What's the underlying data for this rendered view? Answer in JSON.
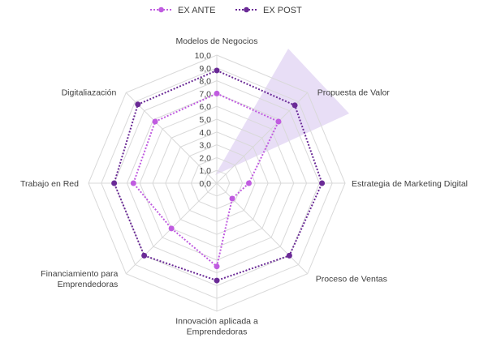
{
  "chart_data": {
    "type": "radar",
    "categories": [
      "Modelos de Negocios",
      "Propuesta de Valor",
      "Estrategia de Marketing Digital",
      "Proceso de Ventas",
      "Innovación aplicada a Emprendedoras",
      "Financiamiento para Emprendedoras",
      "Trabajo en Red",
      "Digitaliazación"
    ],
    "category_lines": [
      [
        "Modelos de Negocios"
      ],
      [
        "Propuesta de Valor"
      ],
      [
        "Estrategia de Marketing Digital"
      ],
      [
        "Proceso de Ventas"
      ],
      [
        "Innovación aplicada a",
        "Emprendedoras"
      ],
      [
        "Financiamiento para",
        "Emprendedoras"
      ],
      [
        "Trabajo en Red"
      ],
      [
        "Digitaliazación"
      ]
    ],
    "series": [
      {
        "name": "EX ANTE",
        "color": "#c05ce0",
        "values": [
          7.0,
          6.8,
          2.5,
          1.7,
          6.5,
          5.0,
          6.5,
          6.8
        ]
      },
      {
        "name": "EX POST",
        "color": "#6a2a96",
        "values": [
          8.8,
          8.6,
          8.2,
          8.0,
          7.6,
          8.0,
          8.0,
          8.7
        ]
      }
    ],
    "rlim": [
      0,
      10
    ],
    "ticks": [
      "0,0",
      "1,0",
      "2,0",
      "3,0",
      "4,0",
      "5,0",
      "6,0",
      "7,0",
      "8,0",
      "9,0",
      "10,0"
    ],
    "grid": true,
    "legend_position": "top",
    "line_style": "dotted",
    "highlight_color": "#e4d8f4"
  }
}
